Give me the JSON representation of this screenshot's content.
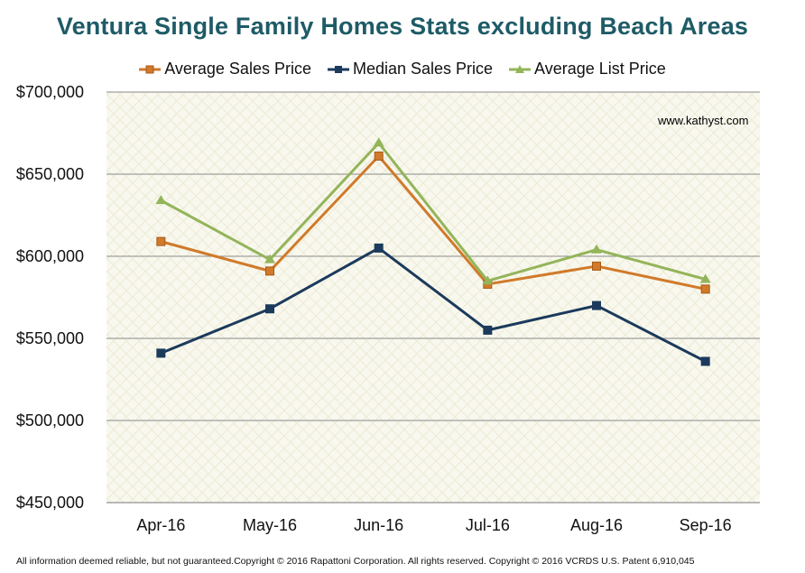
{
  "chart_data": {
    "type": "line",
    "title": "Ventura Single Family Homes Stats excluding Beach Areas",
    "categories": [
      "Apr-16",
      "May-16",
      "Jun-16",
      "Jul-16",
      "Aug-16",
      "Sep-16"
    ],
    "series": [
      {
        "name": "Average Sales Price",
        "values": [
          609000,
          591000,
          661000,
          583000,
          594000,
          580000
        ],
        "color": "#d07a2a",
        "marker": "square"
      },
      {
        "name": "Median Sales Price",
        "values": [
          541000,
          568000,
          605000,
          555000,
          570000,
          536000
        ],
        "color": "#1b3a5c",
        "marker": "square"
      },
      {
        "name": "Average List Price",
        "values": [
          634000,
          598000,
          669000,
          585000,
          604000,
          586000
        ],
        "color": "#93b55a",
        "marker": "triangle"
      }
    ],
    "ylim": [
      450000,
      700000
    ],
    "yticks": [
      450000,
      500000,
      550000,
      600000,
      650000,
      700000
    ],
    "ytick_labels": [
      "$450,000",
      "$500,000",
      "$550,000",
      "$600,000",
      "$650,000",
      "$700,000"
    ],
    "grid": true,
    "legend_position": "top"
  },
  "watermark": "www.kathyst.com",
  "footer": "All information deemed reliable, but not guaranteed.Copyright © 2016 Rapattoni Corporation. All rights reserved. Copyright © 2016 VCRDS U.S. Patent 6,910,045"
}
